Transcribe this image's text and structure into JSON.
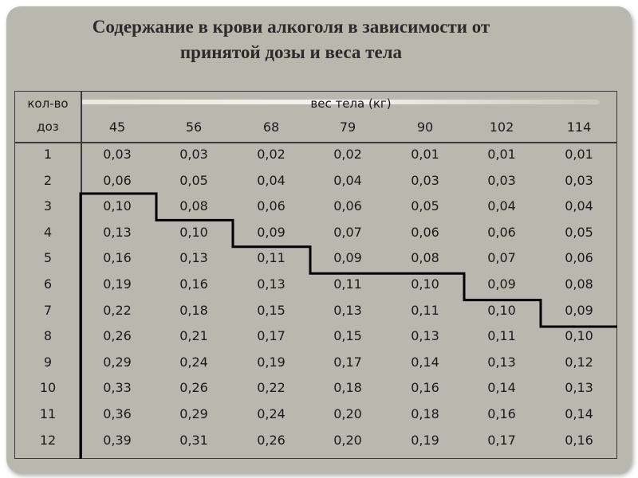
{
  "title": {
    "line1": "Содержание в крови  алкоголя в зависимости от",
    "line2": "принятой дозы  и веса тела"
  },
  "table": {
    "header": {
      "doses_line1": "кол-во",
      "doses_line2": "доз",
      "weight_label": "вес тела (кг)",
      "weights": [
        "45",
        "56",
        "68",
        "79",
        "90",
        "102",
        "114"
      ]
    },
    "rows": [
      {
        "dose": "1",
        "values": [
          "0,03",
          "0,03",
          "0,02",
          "0,02",
          "0,01",
          "0,01",
          "0,01"
        ]
      },
      {
        "dose": "2",
        "values": [
          "0,06",
          "0,05",
          "0,04",
          "0,04",
          "0,03",
          "0,03",
          "0,03"
        ]
      },
      {
        "dose": "3",
        "values": [
          "0,10",
          "0,08",
          "0,06",
          "0,06",
          "0,05",
          "0,04",
          "0,04"
        ]
      },
      {
        "dose": "4",
        "values": [
          "0,13",
          "0,10",
          "0,09",
          "0,07",
          "0,06",
          "0,06",
          "0,05"
        ]
      },
      {
        "dose": "5",
        "values": [
          "0,16",
          "0,13",
          "0,11",
          "0,09",
          "0,08",
          "0,07",
          "0,06"
        ]
      },
      {
        "dose": "6",
        "values": [
          "0,19",
          "0,16",
          "0,13",
          "0,11",
          "0,10",
          "0,09",
          "0,08"
        ]
      },
      {
        "dose": "7",
        "values": [
          "0,22",
          "0,18",
          "0,15",
          "0,13",
          "0,11",
          "0,10",
          "0,09"
        ]
      },
      {
        "dose": "8",
        "values": [
          "0,26",
          "0,21",
          "0,17",
          "0,15",
          "0,13",
          "0,11",
          "0,10"
        ]
      },
      {
        "dose": "9",
        "values": [
          "0,29",
          "0,24",
          "0,19",
          "0,17",
          "0,14",
          "0,13",
          "0,12"
        ]
      },
      {
        "dose": "10",
        "values": [
          "0,33",
          "0,26",
          "0,22",
          "0,18",
          "0,16",
          "0,14",
          "0,13"
        ]
      },
      {
        "dose": "11",
        "values": [
          "0,36",
          "0,29",
          "0,24",
          "0,20",
          "0,18",
          "0,16",
          "0,14"
        ]
      },
      {
        "dose": "12",
        "values": [
          "0,39",
          "0,31",
          "0,26",
          "0,20",
          "0,19",
          "0,17",
          "0,16"
        ]
      }
    ],
    "threshold_start_row_by_column": [
      3,
      4,
      5,
      6,
      6,
      7,
      8
    ]
  },
  "colors": {
    "panel": "#b8b8ae",
    "threshold_line": "#000000"
  }
}
